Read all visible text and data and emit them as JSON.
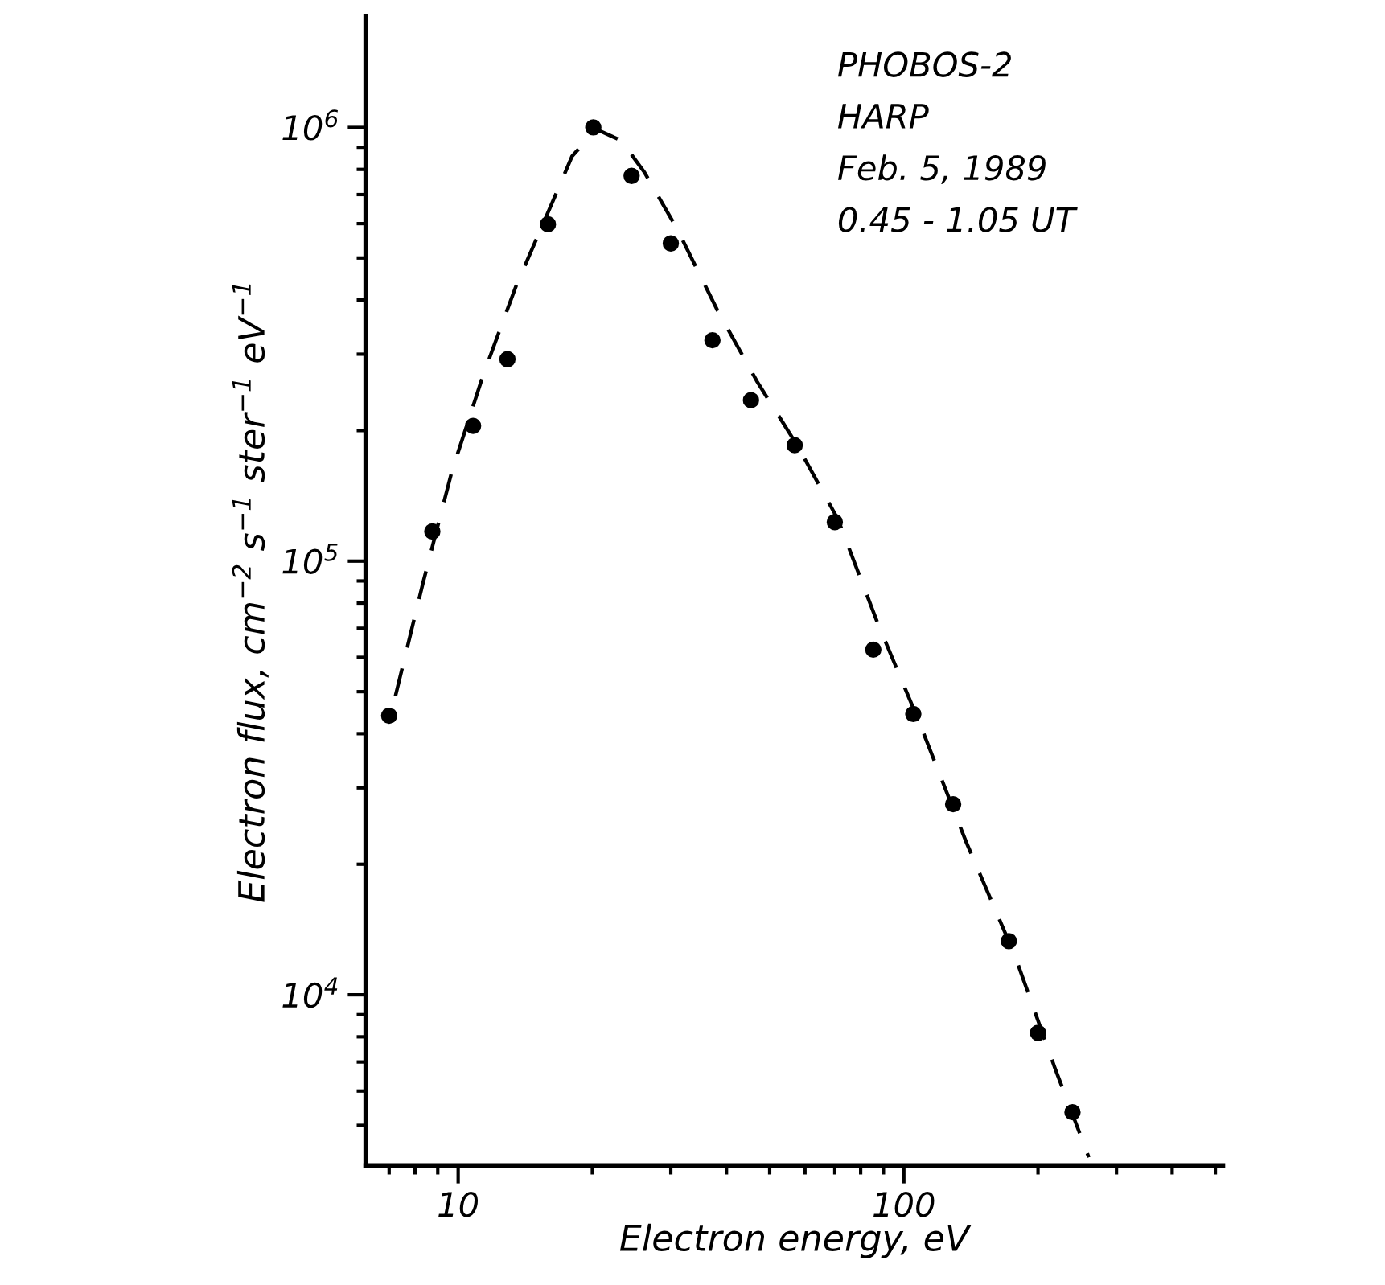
{
  "chart_data": {
    "type": "scatter",
    "xlabel": "Electron energy, eV",
    "ylabel": "Electron flux, cm$^{−2}$ s$^{−1}$ ster$^{−1}$ eV$^{−1}$",
    "annotations": [
      "PHOBOS-2",
      "HARP",
      "Feb. 5, 1989",
      "0.45 - 1.05 UT"
    ],
    "log": "xy",
    "grid": false,
    "legend": false,
    "xlim": [
      6.2,
      520
    ],
    "ylim": [
      4040,
      1800000
    ],
    "xticks": [
      10,
      100
    ],
    "yticks": [
      {
        "value": 10000,
        "label": "10$^{4}$"
      },
      {
        "value": 100000,
        "label": "10$^{5}$"
      },
      {
        "value": 1000000,
        "label": "10$^{6}$"
      }
    ],
    "series": [
      {
        "color": "#000000",
        "marker": "circle",
        "x": [
          7.0,
          8.75,
          10.8,
          12.9,
          15.9,
          20.1,
          24.5,
          30.0,
          37.2,
          45.4,
          56.9,
          70,
          85.4,
          105,
          129,
          172,
          200,
          239
        ],
        "values": [
          44000,
          117000,
          205000,
          292000,
          598000,
          1000000,
          773000,
          540000,
          323000,
          235000,
          185000,
          123000,
          62500,
          44400,
          27500,
          13300,
          8170,
          5360
        ]
      },
      {
        "type": "line",
        "color": "#000000",
        "line_style": "dashed",
        "x": [
          7.23,
          8.33,
          9.68,
          11.4,
          13.5,
          15.9,
          18.0,
          20.4,
          23.2,
          26.2,
          31.0,
          38.1,
          46.9,
          57.8,
          71.1,
          87.5,
          108,
          138,
          177,
          218,
          260
        ],
        "values": [
          48800,
          88700,
          161000,
          270000,
          432000,
          636000,
          857000,
          990000,
          933000,
          787000,
          583000,
          380000,
          259000,
          184000,
          125000,
          71600,
          42800,
          22500,
          12400,
          6800,
          4220
        ]
      }
    ]
  }
}
